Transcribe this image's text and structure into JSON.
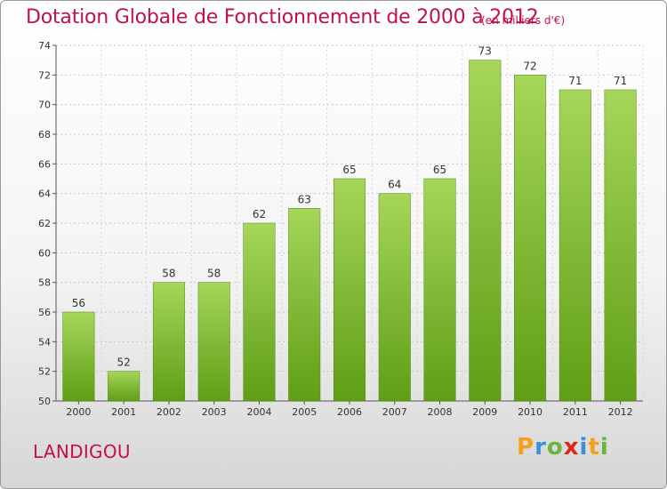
{
  "header": {
    "title": "Dotation Globale de Fonctionnement de 2000 à 2012",
    "subtitle": "(en milliers d'€)"
  },
  "commune": "LANDIGOU",
  "logo": {
    "text": "Proxiti",
    "letters": [
      "P",
      "r",
      "o",
      "x",
      "i",
      "t",
      "i"
    ],
    "colors": [
      "#f5a01a",
      "#3b8fd6",
      "#6db33f",
      "#e2231a",
      "#3b8fd6",
      "#f5a01a",
      "#6db33f"
    ]
  },
  "colors": {
    "bar_top": "#a6d65a",
    "bar_bottom": "#5f9e16",
    "title": "#c0124a"
  },
  "chart_data": {
    "type": "bar",
    "title": "Dotation Globale de Fonctionnement de 2000 à 2012",
    "subtitle": "(en milliers d'€)",
    "categories": [
      "2000",
      "2001",
      "2002",
      "2003",
      "2004",
      "2005",
      "2006",
      "2007",
      "2008",
      "2009",
      "2010",
      "2011",
      "2012"
    ],
    "values": [
      56,
      52,
      58,
      58,
      62,
      63,
      65,
      64,
      65,
      73,
      72,
      71,
      71
    ],
    "ylim": [
      50,
      74
    ],
    "yticks": [
      50,
      52,
      54,
      56,
      58,
      60,
      62,
      64,
      66,
      68,
      70,
      72,
      74
    ],
    "grid": true,
    "legend": "none"
  }
}
